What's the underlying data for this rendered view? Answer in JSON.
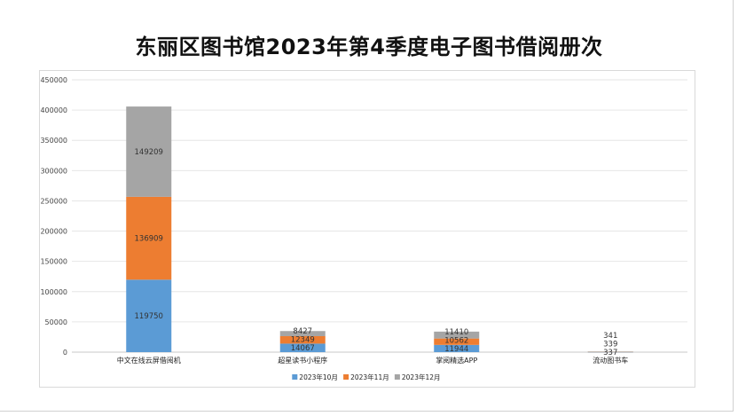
{
  "chart_data": {
    "type": "bar",
    "stacked": true,
    "title": "东丽区图书馆2023年第4季度电子图书借阅册次",
    "xlabel": "",
    "ylabel": "",
    "ylim": [
      0,
      450000
    ],
    "yticks": [
      0,
      50000,
      100000,
      150000,
      200000,
      250000,
      300000,
      350000,
      400000,
      450000
    ],
    "ytick_labels": [
      "0",
      "50000",
      "100000",
      "150000",
      "200000",
      "250000",
      "300000",
      "350000",
      "400000",
      "450000"
    ],
    "grid": true,
    "legend_position": "bottom",
    "categories": [
      "中文在线云屏借阅机",
      "超星读书小程序",
      "掌阅精选APP",
      "流动图书车"
    ],
    "series": [
      {
        "name": "2023年10月",
        "color": "#5B9BD5",
        "values": [
          119750,
          14067,
          11944,
          337
        ]
      },
      {
        "name": "2023年11月",
        "color": "#ED7D31",
        "values": [
          136909,
          12349,
          10562,
          339
        ]
      },
      {
        "name": "2023年12月",
        "color": "#A5A5A5",
        "values": [
          149209,
          8427,
          11410,
          341
        ]
      }
    ]
  }
}
